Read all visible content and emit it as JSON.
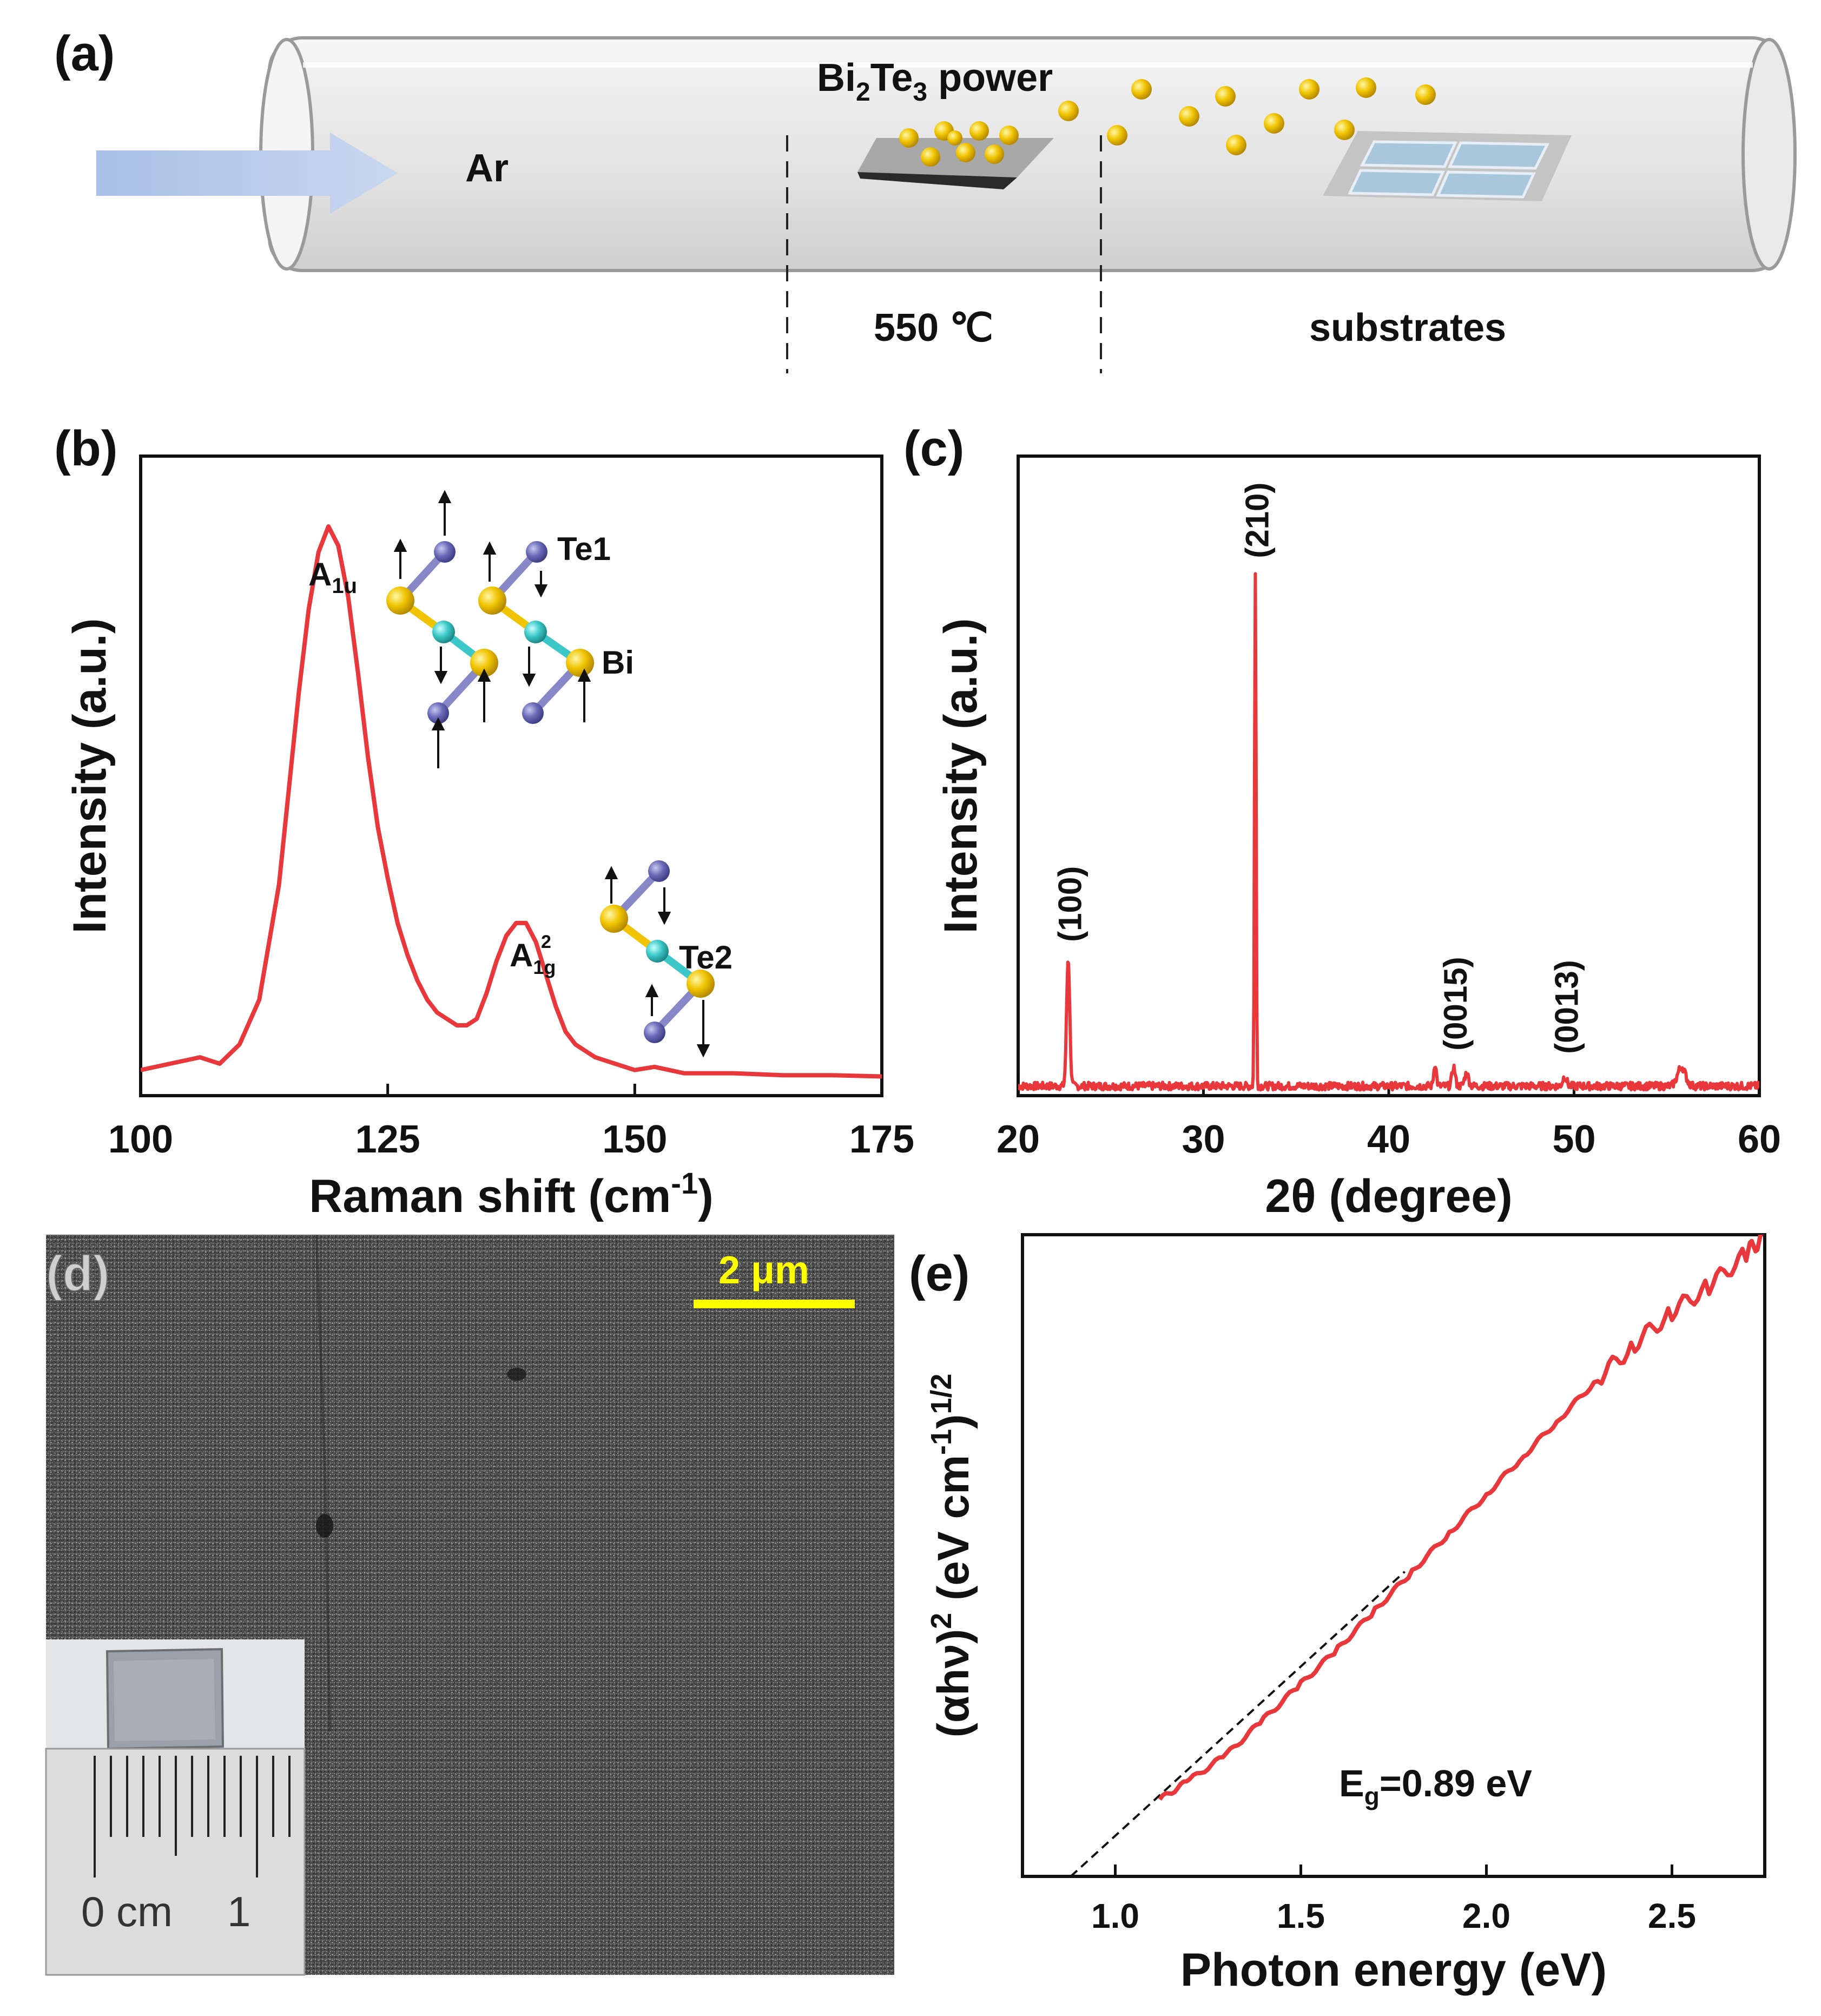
{
  "colors": {
    "curve": "#e8383c",
    "bi": "#f0c400",
    "te": "#6a6ab8",
    "center": "#3cc8c8",
    "arrow": "#a9bfe6",
    "scalebar": "#ffff00"
  },
  "panel_a": {
    "label": "(a)",
    "gas": "Ar",
    "source_prefix": "Bi",
    "source_sub1": "2",
    "source_mid": "Te",
    "source_sub2": "3",
    "source_suffix": " power",
    "temperature": "550 ℃",
    "substrates": "substrates"
  },
  "panel_d": {
    "label": "(d)",
    "scale": "2 μm",
    "ruler_zero": "0 cm",
    "ruler_one": "1"
  },
  "chart_data": [
    {
      "id": "b",
      "type": "line",
      "panel_label": "(b)",
      "xlabel_main": "Raman shift (cm",
      "xlabel_sup": "-1",
      "xlabel_end": ")",
      "ylabel": "Intensity (a.u.)",
      "xlim": [
        100,
        175
      ],
      "xticks": [
        100,
        125,
        150,
        175
      ],
      "ylim": [
        0,
        100
      ],
      "x": [
        100,
        103,
        106,
        108,
        110,
        112,
        114,
        116,
        117,
        118,
        119,
        120,
        121,
        122,
        123,
        124,
        125,
        126,
        127,
        128,
        129,
        130,
        131,
        132,
        133,
        134,
        135,
        136,
        137,
        138,
        139,
        140,
        141,
        142,
        143,
        144,
        145,
        146,
        148,
        150,
        152,
        155,
        160,
        165,
        170,
        175
      ],
      "y": [
        4,
        5,
        6,
        5,
        8,
        15,
        33,
        63,
        76,
        85,
        89,
        86,
        78,
        66,
        53,
        42,
        34,
        27,
        22,
        18,
        15,
        13,
        12,
        11,
        11,
        12,
        16,
        21,
        25,
        27,
        27,
        24,
        19,
        14,
        10,
        8,
        7,
        6,
        5,
        4,
        4.5,
        3.5,
        3.5,
        3.2,
        3.2,
        3
      ],
      "annotations": {
        "a1u_main": "A",
        "a1u_sub": "1u",
        "a1g_main": "A",
        "a1g_sup": "2",
        "a1g_sub": "1g",
        "te1": "Te1",
        "bi": "Bi",
        "te2": "Te2"
      }
    },
    {
      "id": "c",
      "type": "line",
      "panel_label": "(c)",
      "xlabel": "2θ (degree)",
      "ylabel": "Intensity (a.u.)",
      "xlim": [
        20,
        60
      ],
      "xticks": [
        20,
        30,
        40,
        50,
        60
      ],
      "ylim": [
        0,
        100
      ],
      "baseline": 1.5,
      "peaks": [
        {
          "x": 22.7,
          "height": 20,
          "width": 0.12,
          "label": "(100)"
        },
        {
          "x": 32.8,
          "height": 80,
          "width": 0.06,
          "label": "(210)"
        },
        {
          "x": 42.5,
          "height": 3.5,
          "width": 0.1,
          "label": ""
        },
        {
          "x": 43.5,
          "height": 3,
          "width": 0.12,
          "label": "(0015)"
        },
        {
          "x": 44.2,
          "height": 2,
          "width": 0.15,
          "label": ""
        },
        {
          "x": 49.5,
          "height": 1.5,
          "width": 0.15,
          "label": "(0013)"
        },
        {
          "x": 55.8,
          "height": 3,
          "width": 0.3,
          "label": ""
        }
      ]
    },
    {
      "id": "e",
      "type": "line",
      "panel_label": "(e)",
      "xlabel": "Photon energy (eV)",
      "ylabel": "(αhν)²(eV cm⁻¹)¹/²",
      "ylabel_main": "(αhν)",
      "ylabel_sup1": "2",
      "ylabel_mid": " (eV cm",
      "ylabel_sup2": "-1",
      "ylabel_end": ")",
      "ylabel_sup3": "1/2",
      "xlim": [
        0.75,
        2.75
      ],
      "xticks": [
        "1.0",
        "1.5",
        "2.0",
        "2.5"
      ],
      "ylim": [
        0,
        100
      ],
      "x": [
        1.12,
        1.2,
        1.3,
        1.4,
        1.5,
        1.6,
        1.7,
        1.8,
        1.9,
        2.0,
        2.1,
        2.2,
        2.3,
        2.4,
        2.5,
        2.6,
        2.7,
        2.75
      ],
      "y": [
        12,
        15,
        19,
        24.5,
        30,
        35.5,
        41.5,
        47.5,
        53.5,
        59.5,
        65.5,
        71.5,
        77.5,
        83,
        88,
        92,
        97,
        100
      ],
      "fit_line": {
        "x": [
          0.88,
          1.78
        ],
        "y": [
          0,
          47.5
        ]
      },
      "annotation_main": "E",
      "annotation_sub": "g",
      "annotation_value": "=0.89 eV"
    }
  ]
}
